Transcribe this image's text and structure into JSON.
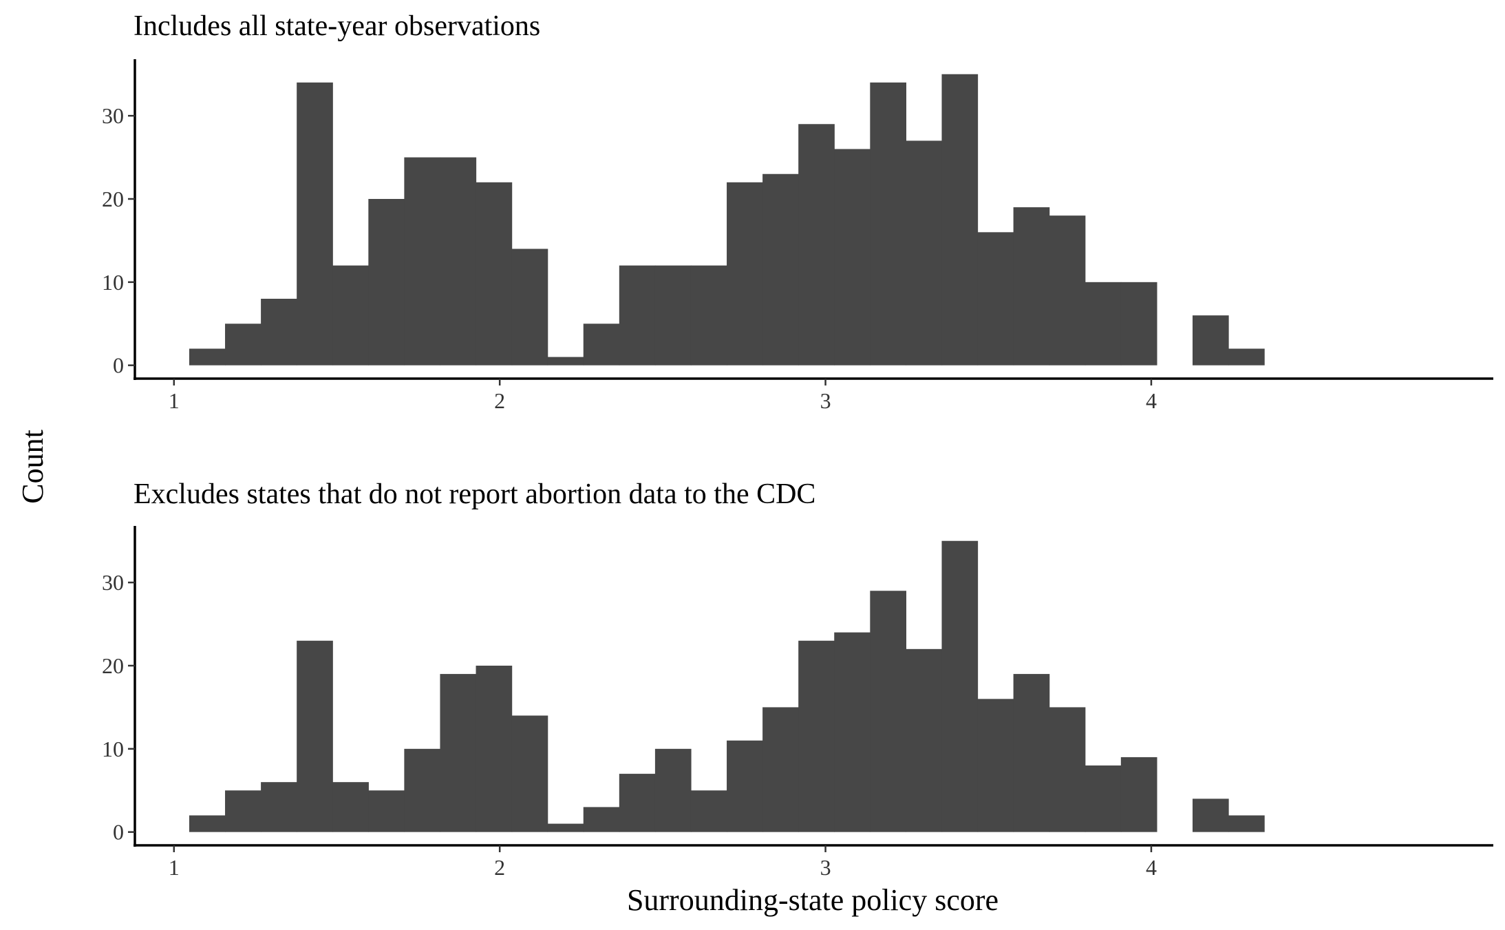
{
  "figure": {
    "ylabel": "Count",
    "xlabel": "Surrounding-state policy score"
  },
  "colors": {
    "bar": "#474747",
    "axis": "#000000",
    "tick_text": "#333333"
  },
  "chart_data": [
    {
      "type": "bar",
      "title": "Includes all state-year observations",
      "xlabel": "",
      "ylabel": "",
      "bin_width": 0.11,
      "bin_start": 1.0468,
      "bins": [
        1.1,
        1.21,
        1.32,
        1.43,
        1.54,
        1.65,
        1.76,
        1.87,
        1.98,
        2.09,
        2.2,
        2.31,
        2.42,
        2.53,
        2.64,
        2.75,
        2.86,
        2.97,
        3.08,
        3.19,
        3.3,
        3.41,
        3.52,
        3.63,
        3.74,
        3.85,
        3.96,
        4.07,
        4.18,
        4.29
      ],
      "values": [
        2,
        5,
        8,
        34,
        12,
        20,
        25,
        25,
        22,
        14,
        1,
        5,
        12,
        12,
        12,
        22,
        23,
        29,
        26,
        34,
        27,
        35,
        16,
        19,
        18,
        10,
        10,
        0,
        6,
        2
      ],
      "xlim": [
        0.88,
        5.05
      ],
      "ylim": [
        -1.6,
        36.8
      ],
      "xticks": [
        1,
        2,
        3,
        4
      ],
      "xtick_labels": [
        "1",
        "2",
        "3",
        "4"
      ],
      "yticks": [
        0,
        10,
        20,
        30
      ],
      "ytick_labels": [
        "0",
        "10",
        "20",
        "30"
      ],
      "grid": false
    },
    {
      "type": "bar",
      "title": "Excludes states that do not report abortion data to the CDC",
      "xlabel": "",
      "ylabel": "",
      "bin_width": 0.11,
      "bin_start": 1.0468,
      "bins": [
        1.1,
        1.21,
        1.32,
        1.43,
        1.54,
        1.65,
        1.76,
        1.87,
        1.98,
        2.09,
        2.2,
        2.31,
        2.42,
        2.53,
        2.64,
        2.75,
        2.86,
        2.97,
        3.08,
        3.19,
        3.3,
        3.41,
        3.52,
        3.63,
        3.74,
        3.85,
        3.96,
        4.07,
        4.18,
        4.29
      ],
      "values": [
        2,
        5,
        6,
        23,
        6,
        5,
        10,
        19,
        20,
        14,
        1,
        3,
        7,
        10,
        5,
        11,
        15,
        23,
        24,
        29,
        22,
        35,
        16,
        19,
        15,
        8,
        9,
        0,
        4,
        2
      ],
      "xlim": [
        0.88,
        5.05
      ],
      "ylim": [
        -1.6,
        36.8
      ],
      "xticks": [
        1,
        2,
        3,
        4
      ],
      "xtick_labels": [
        "1",
        "2",
        "3",
        "4"
      ],
      "yticks": [
        0,
        10,
        20,
        30
      ],
      "ytick_labels": [
        "0",
        "10",
        "20",
        "30"
      ],
      "grid": false
    }
  ]
}
